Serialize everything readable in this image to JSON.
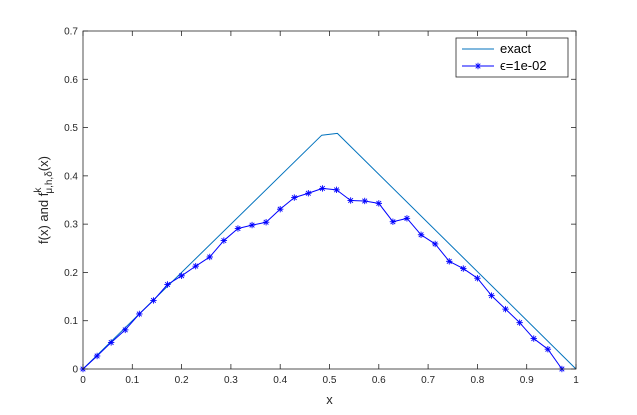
{
  "chart_data": {
    "type": "line",
    "xlabel": "x",
    "ylabel": {
      "prefix": "f(x) and f",
      "superscript": "k",
      "subscript": "μ,h,δ",
      "suffix": "(x)"
    },
    "xlim": [
      0,
      1
    ],
    "ylim": [
      0,
      0.7
    ],
    "xticks": [
      0,
      0.1,
      0.2,
      0.3,
      0.4,
      0.5,
      0.6,
      0.7,
      0.8,
      0.9,
      1
    ],
    "yticks": [
      0,
      0.1,
      0.2,
      0.3,
      0.4,
      0.5,
      0.6,
      0.7
    ],
    "xtick_labels": [
      "0",
      "0.1",
      "0.2",
      "0.3",
      "0.4",
      "0.5",
      "0.6",
      "0.7",
      "0.8",
      "0.9",
      "1"
    ],
    "ytick_labels": [
      "0",
      "0.1",
      "0.2",
      "0.3",
      "0.4",
      "0.5",
      "0.6",
      "0.7"
    ],
    "grid": false,
    "legend_position": "top-right",
    "series": [
      {
        "name": "exact",
        "color": "#0072BD",
        "marker": "none",
        "x": [
          0,
          0.484,
          0.516,
          1
        ],
        "y": [
          0,
          0.484,
          0.488,
          0
        ]
      },
      {
        "name": "ϵ=1e-02",
        "color": "#0000ff",
        "marker": "asterisk",
        "x": [
          0,
          0.0286,
          0.0571,
          0.0857,
          0.1143,
          0.1429,
          0.1714,
          0.2,
          0.2286,
          0.2571,
          0.2857,
          0.3143,
          0.3429,
          0.3714,
          0.4,
          0.4286,
          0.4571,
          0.4857,
          0.5143,
          0.5429,
          0.5714,
          0.6,
          0.6286,
          0.6571,
          0.6857,
          0.7143,
          0.7429,
          0.7714,
          0.8,
          0.8286,
          0.8571,
          0.8857,
          0.9143,
          0.9429,
          0.9714
        ],
        "y": [
          0,
          0.027,
          0.055,
          0.081,
          0.114,
          0.142,
          0.175,
          0.193,
          0.213,
          0.232,
          0.266,
          0.291,
          0.298,
          0.304,
          0.331,
          0.355,
          0.364,
          0.374,
          0.371,
          0.349,
          0.348,
          0.343,
          0.305,
          0.312,
          0.278,
          0.259,
          0.223,
          0.208,
          0.188,
          0.152,
          0.124,
          0.096,
          0.063,
          0.041,
          0
        ]
      }
    ]
  }
}
